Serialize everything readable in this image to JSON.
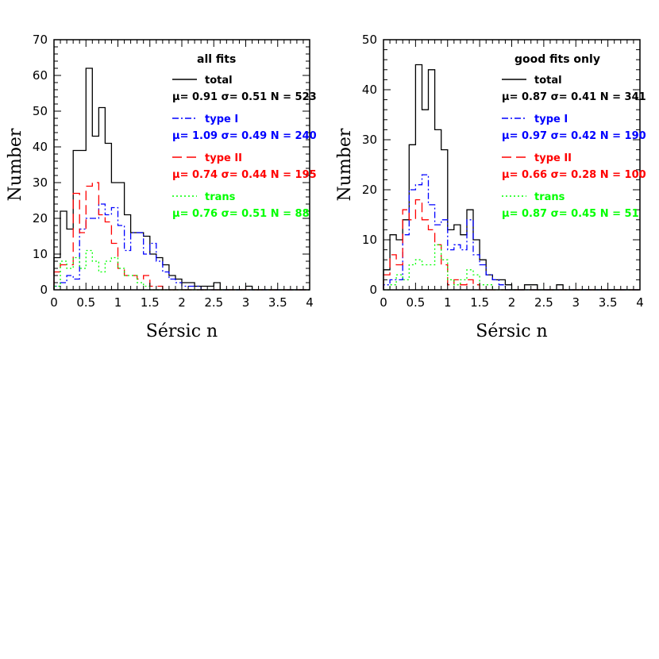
{
  "colors": {
    "total": "#000000",
    "type1": "#0000ff",
    "type2": "#ff0000",
    "trans": "#00ff00"
  },
  "chart_data": [
    {
      "type": "histogram",
      "title": "all fits",
      "xlabel": "Sérsic n",
      "ylabel": "Number",
      "xlim": [
        0,
        4
      ],
      "ylim": [
        0,
        70
      ],
      "bin_width": 0.1,
      "bin_start": 0.0,
      "xticks": [
        "0",
        "0.5",
        "1",
        "1.5",
        "2",
        "2.5",
        "3",
        "3.5",
        "4"
      ],
      "yticks": [
        "0",
        "10",
        "20",
        "30",
        "40",
        "50",
        "60",
        "70"
      ],
      "series": [
        {
          "key": "total",
          "name": "total",
          "stats": "μ= 0.91 σ= 0.51 N = 523",
          "values": [
            9,
            22,
            17,
            39,
            39,
            62,
            43,
            51,
            41,
            30,
            30,
            21,
            16,
            16,
            15,
            10,
            9,
            7,
            4,
            3,
            2,
            2,
            1,
            1,
            1,
            2,
            0,
            0,
            0,
            0,
            1,
            0,
            0,
            0,
            0,
            0,
            0,
            0,
            0,
            0
          ]
        },
        {
          "key": "type1",
          "name": "type I",
          "stats": "μ= 1.09 σ= 0.49 N = 240",
          "values": [
            1,
            2,
            4,
            3,
            17,
            20,
            20,
            24,
            21,
            23,
            18,
            11,
            16,
            16,
            10,
            13,
            8,
            5,
            3,
            2,
            1,
            1,
            1,
            0,
            0,
            0,
            0,
            0,
            0,
            0,
            0,
            0,
            0,
            0,
            0,
            0,
            0,
            0,
            0,
            0
          ]
        },
        {
          "key": "type2",
          "name": "type II",
          "stats": "μ= 0.74 σ= 0.44 N = 195",
          "values": [
            5,
            7,
            7,
            27,
            16,
            29,
            30,
            21,
            19,
            13,
            6,
            4,
            4,
            3,
            4,
            1,
            1,
            0,
            0,
            0,
            0,
            0,
            0,
            0,
            0,
            0,
            0,
            0,
            0,
            0,
            0,
            0,
            0,
            0,
            0,
            0,
            0,
            0,
            0,
            0
          ]
        },
        {
          "key": "trans",
          "name": "trans",
          "stats": "μ= 0.76 σ= 0.51 N = 88",
          "values": [
            1,
            8,
            6,
            9,
            6,
            11,
            8,
            5,
            8,
            9,
            6,
            4,
            4,
            2,
            1,
            0,
            0,
            0,
            0,
            0,
            0,
            0,
            0,
            0,
            0,
            0,
            0,
            0,
            0,
            0,
            0,
            0,
            0,
            0,
            0,
            0,
            0,
            0,
            0,
            0
          ]
        }
      ]
    },
    {
      "type": "histogram",
      "title": "good fits only",
      "xlabel": "Sérsic n",
      "ylabel": "Number",
      "xlim": [
        0,
        4
      ],
      "ylim": [
        0,
        50
      ],
      "bin_width": 0.1,
      "bin_start": 0.0,
      "xticks": [
        "0",
        "0.5",
        "1",
        "1.5",
        "2",
        "2.5",
        "3",
        "3.5",
        "4"
      ],
      "yticks": [
        "0",
        "10",
        "20",
        "30",
        "40",
        "50"
      ],
      "series": [
        {
          "key": "total",
          "name": "total",
          "stats": "μ= 0.87 σ= 0.41 N = 341",
          "values": [
            4,
            11,
            10,
            14,
            29,
            45,
            36,
            44,
            32,
            28,
            12,
            13,
            11,
            16,
            10,
            6,
            3,
            2,
            2,
            1,
            0,
            0,
            1,
            1,
            0,
            0,
            0,
            1,
            0,
            0,
            0,
            0,
            0,
            0,
            0,
            0,
            0,
            0,
            0,
            0
          ]
        },
        {
          "key": "type1",
          "name": "type I",
          "stats": "μ= 0.97 σ= 0.42 N = 190",
          "values": [
            1,
            2,
            2,
            11,
            20,
            21,
            23,
            17,
            13,
            14,
            8,
            9,
            8,
            14,
            7,
            5,
            3,
            2,
            1,
            0,
            0,
            0,
            0,
            0,
            0,
            0,
            0,
            0,
            0,
            0,
            0,
            0,
            0,
            0,
            0,
            0,
            0,
            0,
            0,
            0
          ]
        },
        {
          "key": "type2",
          "name": "type II",
          "stats": "μ= 0.66 σ= 0.28 N = 100",
          "values": [
            3,
            7,
            5,
            16,
            14,
            18,
            14,
            12,
            9,
            5,
            1,
            2,
            1,
            2,
            1,
            0,
            0,
            0,
            0,
            0,
            0,
            0,
            0,
            0,
            0,
            0,
            0,
            0,
            0,
            0,
            0,
            0,
            0,
            0,
            0,
            0,
            0,
            0,
            0,
            0
          ]
        },
        {
          "key": "trans",
          "name": "trans",
          "stats": "μ= 0.87 σ= 0.45 N = 51",
          "values": [
            0,
            1,
            3,
            2,
            5,
            6,
            5,
            5,
            9,
            6,
            2,
            1,
            2,
            4,
            3,
            1,
            1,
            0,
            0,
            0,
            0,
            0,
            0,
            0,
            0,
            0,
            0,
            0,
            0,
            0,
            0,
            0,
            0,
            0,
            0,
            0,
            0,
            0,
            0,
            0
          ]
        }
      ]
    }
  ]
}
